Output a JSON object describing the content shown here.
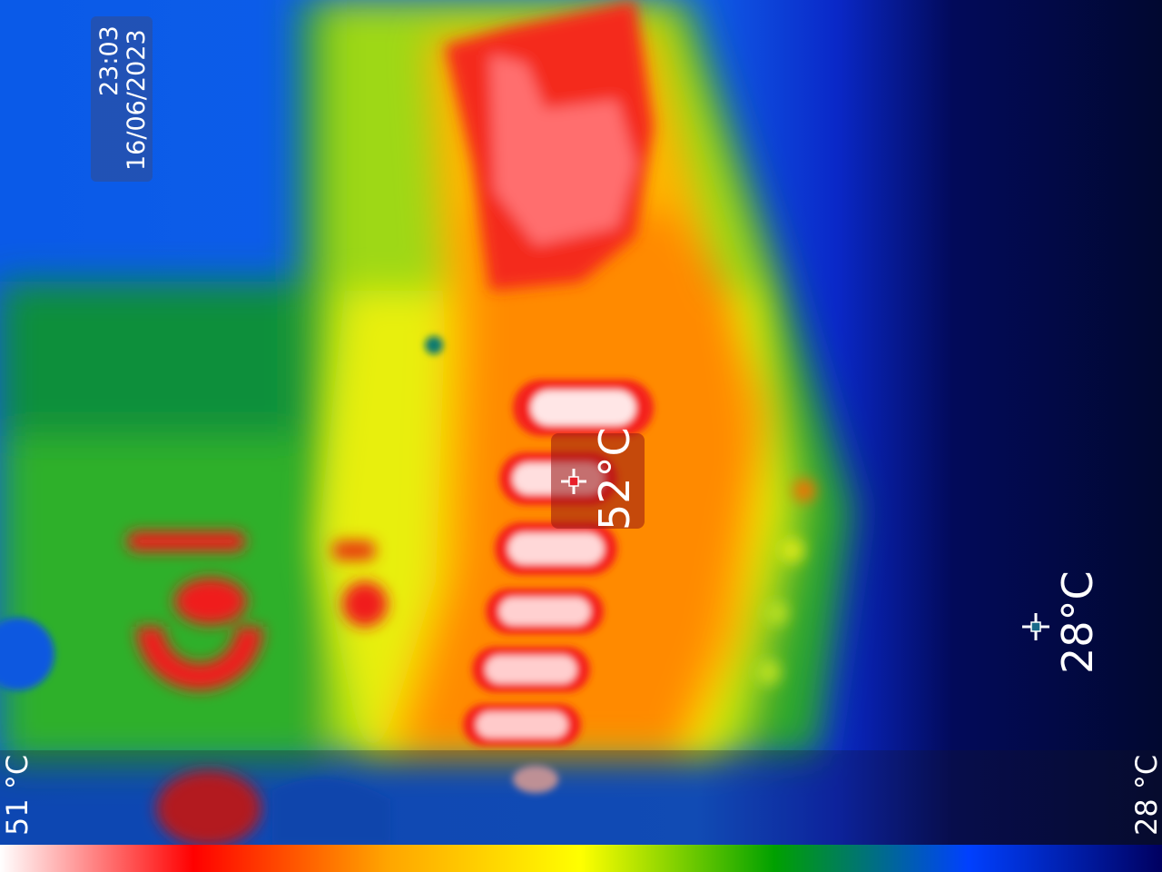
{
  "overlay": {
    "time": "23:03",
    "date": "16/06/2023"
  },
  "center_spot": {
    "temperature": "52°C",
    "icon": "crosshair-icon",
    "color": "#e8202a"
  },
  "cold_spot": {
    "temperature": "28°C",
    "icon": "crosshair-icon",
    "color": "#1a6a8a"
  },
  "scale": {
    "max_label": "51 °C",
    "min_label": "28 °C",
    "palette": [
      "#ffffff",
      "#ff0000",
      "#ffa500",
      "#ffff00",
      "#00a000",
      "#0040ff",
      "#000060"
    ]
  }
}
